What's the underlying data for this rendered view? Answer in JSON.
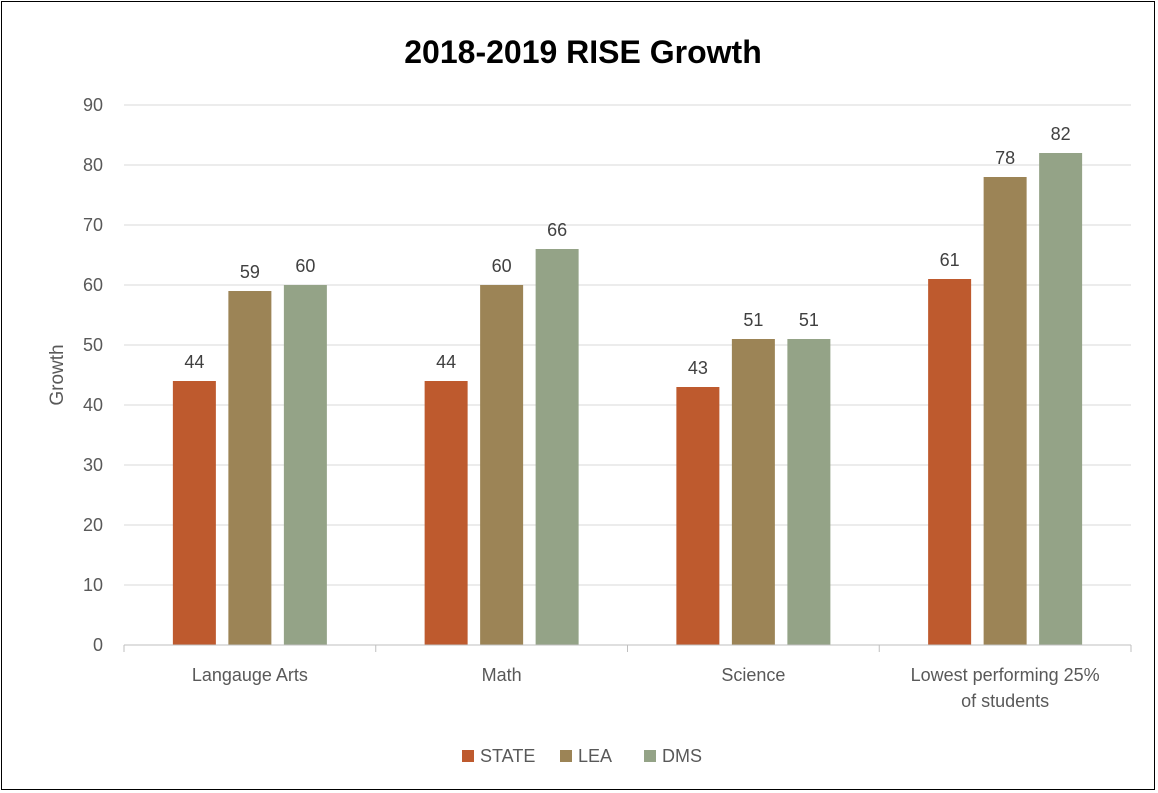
{
  "chart_data": {
    "type": "bar",
    "title": "2018-2019 RISE Growth",
    "xlabel": "",
    "ylabel": "Growth",
    "ylim": [
      0,
      90
    ],
    "yticks": [
      0,
      10,
      20,
      30,
      40,
      50,
      60,
      70,
      80,
      90
    ],
    "grid": true,
    "legend_position": "bottom",
    "categories": [
      [
        "Langauge Arts"
      ],
      [
        "Math"
      ],
      [
        "Science"
      ],
      [
        "Lowest performing 25%",
        "of students"
      ]
    ],
    "series": [
      {
        "name": "STATE",
        "color": "#be5a2e",
        "values": [
          44,
          44,
          43,
          61
        ]
      },
      {
        "name": "LEA",
        "color": "#9c8456",
        "values": [
          59,
          60,
          51,
          78
        ]
      },
      {
        "name": "DMS",
        "color": "#94a387",
        "values": [
          60,
          66,
          51,
          82
        ]
      }
    ]
  }
}
